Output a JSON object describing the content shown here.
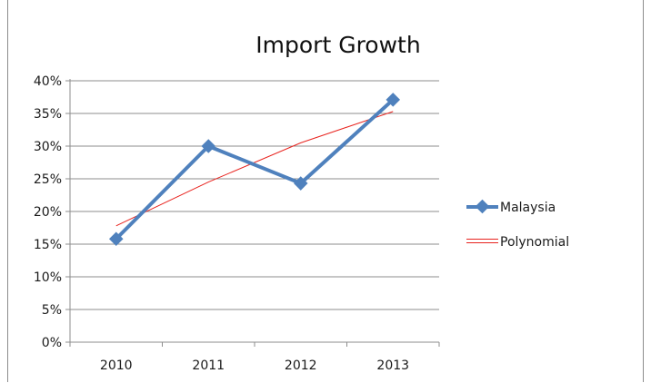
{
  "chart_data": {
    "type": "line",
    "title": "Import Growth",
    "xlabel": "",
    "ylabel": "",
    "categories": [
      "2010",
      "2011",
      "2012",
      "2013"
    ],
    "ylim": [
      0,
      40
    ],
    "y_ticks": [
      "0%",
      "5%",
      "10%",
      "15%",
      "20%",
      "25%",
      "30%",
      "35%",
      "40%"
    ],
    "grid": true,
    "legend_position": "right",
    "series": [
      {
        "name": "Malaysia",
        "values": [
          15.8,
          30.0,
          24.3,
          37.1
        ],
        "color": "#4f81bd",
        "marker": "diamond"
      }
    ],
    "trendline": {
      "name": "Polynomial",
      "values": [
        17.8,
        24.5,
        30.5,
        35.3
      ],
      "color": "#e8231e"
    }
  }
}
